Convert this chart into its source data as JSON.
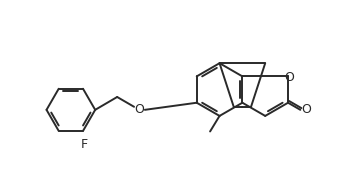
{
  "bg_color": "#ffffff",
  "line_color": "#2a2a2a",
  "line_width": 1.4,
  "text_color": "#2a2a2a",
  "font_size": 8.5,
  "figsize": [
    3.58,
    1.96
  ],
  "dpi": 100,
  "xlim": [
    0,
    10.5
  ],
  "ylim": [
    0,
    5.8
  ]
}
